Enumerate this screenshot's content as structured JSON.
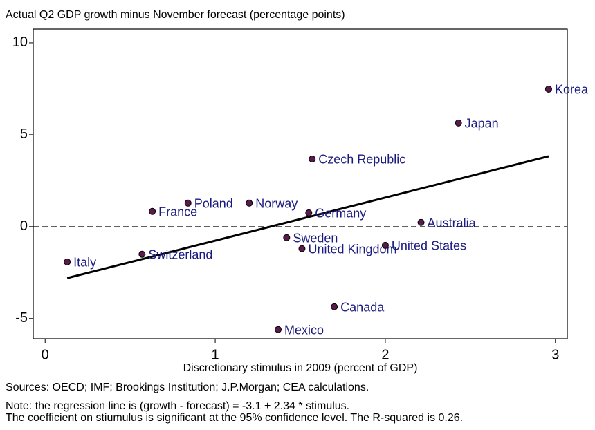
{
  "chart_data": {
    "type": "scatter",
    "title": "Actual Q2 GDP growth minus November forecast (percentage points)",
    "x_label": "Discretionary stimulus in 2009 (percent of GDP)",
    "notes": [
      "Sources: OECD; IMF; Brookings Institution; J.P.Morgan; CEA calculations.",
      "Note: the regression line is (growth - forecast) = -3.1 + 2.34 * stimulus.",
      "The coefficient on stiumulus is significant at the 95% confidence level. The R-squared is 0.26."
    ],
    "xlim": [
      -0.07,
      3.07
    ],
    "ylim": [
      -6.1,
      10.75
    ],
    "xticks": [
      0,
      1,
      2,
      3
    ],
    "yticks": [
      -5,
      0,
      5,
      10
    ],
    "reference_line": 0,
    "point_color": "#5a1a4a",
    "label_color": "#1a1a80",
    "points": [
      {
        "label": "Italy",
        "x": 0.13,
        "y": -1.92
      },
      {
        "label": "Switzerland",
        "x": 0.57,
        "y": -1.5
      },
      {
        "label": "France",
        "x": 0.63,
        "y": 0.83
      },
      {
        "label": "Poland",
        "x": 0.84,
        "y": 1.28
      },
      {
        "label": "Norway",
        "x": 1.2,
        "y": 1.28
      },
      {
        "label": "Germany",
        "x": 1.55,
        "y": 0.75
      },
      {
        "label": "Sweden",
        "x": 1.42,
        "y": -0.6
      },
      {
        "label": "United Kingdom",
        "x": 1.51,
        "y": -1.2
      },
      {
        "label": "Czech Republic",
        "x": 1.57,
        "y": 3.68
      },
      {
        "label": "Mexico",
        "x": 1.37,
        "y": -5.6
      },
      {
        "label": "Canada",
        "x": 1.7,
        "y": -4.36
      },
      {
        "label": "United States",
        "x": 2.0,
        "y": -1.02
      },
      {
        "label": "Australia",
        "x": 2.21,
        "y": 0.23
      },
      {
        "label": "Japan",
        "x": 2.43,
        "y": 5.64
      },
      {
        "label": "Korea",
        "x": 2.96,
        "y": 7.48
      }
    ],
    "trend_line": {
      "x": [
        0.13,
        2.96
      ],
      "y": [
        -2.8,
        3.83
      ]
    }
  }
}
